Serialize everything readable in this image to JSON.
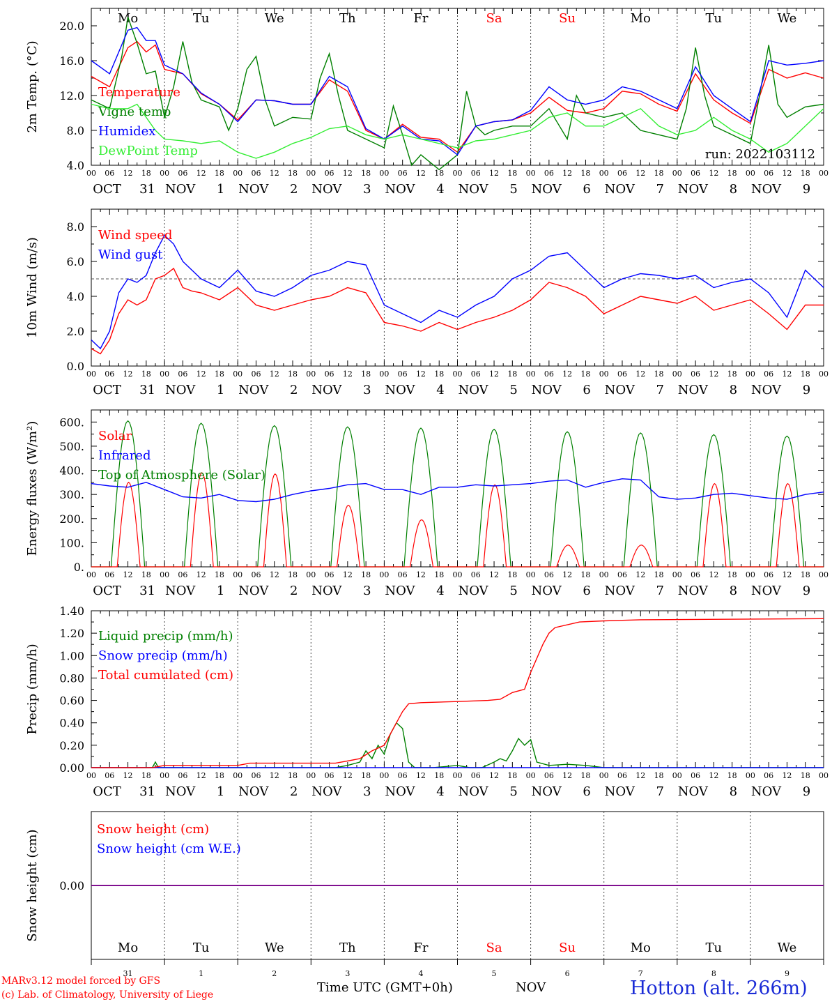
{
  "days": [
    {
      "weekday": "Mo",
      "month": "OCT",
      "day": "31",
      "weekend": false
    },
    {
      "weekday": "Tu",
      "month": "NOV",
      "day": "1",
      "weekend": false
    },
    {
      "weekday": "We",
      "month": "NOV",
      "day": "2",
      "weekend": false
    },
    {
      "weekday": "Th",
      "month": "NOV",
      "day": "3",
      "weekend": false
    },
    {
      "weekday": "Fr",
      "month": "NOV",
      "day": "4",
      "weekend": false
    },
    {
      "weekday": "Sa",
      "month": "NOV",
      "day": "5",
      "weekend": true
    },
    {
      "weekday": "Su",
      "month": "NOV",
      "day": "6",
      "weekend": true
    },
    {
      "weekday": "Mo",
      "month": "NOV",
      "day": "7",
      "weekend": false
    },
    {
      "weekday": "Tu",
      "month": "NOV",
      "day": "8",
      "weekend": false
    },
    {
      "weekday": "We",
      "month": "NOV",
      "day": "9",
      "weekend": false
    }
  ],
  "hour_ticks": [
    "00",
    "06",
    "12",
    "18"
  ],
  "colors": {
    "red": "#ff0000",
    "green": "#008000",
    "blue": "#0000ff",
    "lightgreen": "#33ee33",
    "purple": "#800080",
    "weekend": "#ff0000",
    "axis": "#000000"
  },
  "chart_data": [
    {
      "id": "temp",
      "type": "line",
      "ylabel": "2m Temp. (°C)",
      "ylim": [
        4.0,
        22.0
      ],
      "yticks": [
        4.0,
        8.0,
        12.0,
        16.0,
        20.0
      ],
      "ytick_labels": [
        "4.0",
        "8.0",
        "12.0",
        "16.0",
        "20.0"
      ],
      "show_weekdays": true,
      "annotation": "run: 2022103112",
      "x_unit": "hours since Oct 31 00 UTC",
      "series": [
        {
          "name": "Temperature",
          "color": "#ff0000",
          "x": [
            0,
            6,
            12,
            15,
            18,
            21,
            24,
            30,
            36,
            42,
            48,
            54,
            60,
            66,
            72,
            78,
            84,
            90,
            96,
            102,
            108,
            114,
            120,
            126,
            132,
            138,
            144,
            150,
            156,
            162,
            168,
            174,
            180,
            186,
            192,
            198,
            204,
            210,
            216,
            222,
            228,
            234,
            240
          ],
          "y": [
            14.2,
            13.0,
            17.5,
            18.2,
            17.0,
            17.8,
            15.0,
            14.5,
            12.2,
            11.0,
            9.2,
            11.5,
            11.4,
            11.0,
            11.0,
            13.8,
            12.5,
            8.0,
            7.0,
            8.7,
            7.2,
            7.0,
            5.5,
            8.5,
            9.0,
            9.2,
            10.0,
            11.8,
            10.3,
            10.0,
            10.5,
            12.5,
            12.2,
            11.0,
            10.2,
            14.5,
            11.5,
            10.0,
            8.8,
            15.0,
            14.0,
            14.6,
            14.0
          ]
        },
        {
          "name": "Vigne temp",
          "color": "#008000",
          "x": [
            0,
            6,
            10,
            12,
            15,
            18,
            21,
            24,
            27,
            30,
            33,
            36,
            42,
            45,
            48,
            51,
            54,
            57,
            60,
            66,
            72,
            75,
            78,
            81,
            84,
            90,
            96,
            99,
            102,
            105,
            108,
            114,
            120,
            123,
            126,
            129,
            132,
            138,
            144,
            150,
            156,
            159,
            162,
            168,
            174,
            180,
            186,
            192,
            195,
            198,
            201,
            204,
            210,
            216,
            219,
            222,
            225,
            228,
            234,
            240
          ],
          "y": [
            11.5,
            10.5,
            16.5,
            21.0,
            18.0,
            14.5,
            14.8,
            9.5,
            13.0,
            18.2,
            13.5,
            11.5,
            10.7,
            8.0,
            10.5,
            15.0,
            16.5,
            11.5,
            8.5,
            9.5,
            9.3,
            14.0,
            16.8,
            12.0,
            8.0,
            7.0,
            6.0,
            10.8,
            7.5,
            4.0,
            5.2,
            3.5,
            5.2,
            12.5,
            8.5,
            7.5,
            8.0,
            8.5,
            8.5,
            10.5,
            7.0,
            12.0,
            10.0,
            9.5,
            10.0,
            8.0,
            7.5,
            7.0,
            10.5,
            17.5,
            12.0,
            8.5,
            7.5,
            6.5,
            12.0,
            17.8,
            11.0,
            9.5,
            10.7,
            11.0
          ]
        },
        {
          "name": "Humidex",
          "color": "#0000ff",
          "x": [
            0,
            6,
            12,
            15,
            18,
            21,
            24,
            30,
            36,
            42,
            48,
            54,
            60,
            66,
            72,
            78,
            84,
            90,
            96,
            102,
            108,
            114,
            120,
            126,
            132,
            138,
            144,
            150,
            156,
            162,
            168,
            174,
            180,
            186,
            192,
            198,
            204,
            210,
            216,
            222,
            228,
            234,
            240
          ],
          "y": [
            16.0,
            14.5,
            19.5,
            19.8,
            18.3,
            18.3,
            15.5,
            14.5,
            12.3,
            11.0,
            9.0,
            11.5,
            11.4,
            11.0,
            11.0,
            14.2,
            13.0,
            8.2,
            7.0,
            8.5,
            7.0,
            6.8,
            5.2,
            8.5,
            9.0,
            9.2,
            10.3,
            13.0,
            11.5,
            11.0,
            11.5,
            13.0,
            12.5,
            11.5,
            10.5,
            15.3,
            12.0,
            10.5,
            9.0,
            16.0,
            15.5,
            15.7,
            16.0
          ]
        },
        {
          "name": "DewPoint Temp",
          "color": "#33ee33",
          "x": [
            0,
            6,
            12,
            15,
            18,
            21,
            24,
            30,
            36,
            42,
            48,
            54,
            60,
            66,
            72,
            78,
            84,
            90,
            96,
            102,
            108,
            114,
            120,
            126,
            132,
            138,
            144,
            150,
            156,
            162,
            168,
            174,
            180,
            186,
            192,
            198,
            204,
            210,
            216,
            222,
            228,
            234,
            240
          ],
          "y": [
            11.0,
            10.5,
            10.5,
            11.0,
            9.5,
            8.0,
            7.0,
            6.8,
            6.5,
            6.8,
            5.5,
            4.8,
            5.5,
            6.5,
            7.2,
            8.2,
            8.5,
            7.5,
            7.0,
            7.5,
            7.0,
            6.5,
            6.0,
            6.8,
            7.0,
            7.5,
            8.0,
            9.5,
            10.0,
            8.5,
            8.5,
            9.5,
            10.5,
            8.5,
            7.5,
            8.0,
            9.5,
            8.0,
            7.0,
            5.5,
            6.5,
            8.5,
            10.5
          ]
        }
      ],
      "legend": [
        "Temperature",
        "Vigne temp",
        "Humidex",
        "DewPoint Temp"
      ]
    },
    {
      "id": "wind",
      "type": "line",
      "ylabel": "10m Wind (m/s)",
      "ylim": [
        0.0,
        9.0
      ],
      "yticks": [
        0.0,
        2.0,
        4.0,
        6.0,
        8.0
      ],
      "ytick_labels": [
        "0.0",
        "2.0",
        "4.0",
        "6.0",
        "8.0"
      ],
      "reference_line": 5.0,
      "x_unit": "hours since Oct 31 00 UTC",
      "series": [
        {
          "name": "Wind speed",
          "color": "#ff0000",
          "x": [
            0,
            3,
            6,
            9,
            12,
            15,
            18,
            21,
            24,
            27,
            30,
            33,
            36,
            42,
            48,
            54,
            60,
            66,
            72,
            78,
            84,
            90,
            96,
            102,
            108,
            114,
            120,
            126,
            132,
            138,
            144,
            150,
            156,
            162,
            168,
            174,
            180,
            186,
            192,
            198,
            204,
            210,
            216,
            222,
            228,
            234,
            240
          ],
          "y": [
            1.0,
            0.7,
            1.5,
            3.0,
            3.8,
            3.5,
            3.8,
            5.0,
            5.2,
            5.6,
            4.5,
            4.3,
            4.2,
            3.8,
            4.5,
            3.5,
            3.2,
            3.5,
            3.8,
            4.0,
            4.5,
            4.2,
            2.5,
            2.3,
            2.0,
            2.5,
            2.1,
            2.5,
            2.8,
            3.2,
            3.8,
            4.8,
            4.5,
            4.0,
            3.0,
            3.5,
            4.0,
            3.8,
            3.6,
            4.0,
            3.2,
            3.5,
            3.8,
            3.0,
            2.1,
            3.5,
            3.5
          ]
        },
        {
          "name": "Wind gust",
          "color": "#0000ff",
          "x": [
            0,
            3,
            6,
            9,
            12,
            15,
            18,
            21,
            24,
            27,
            30,
            33,
            36,
            42,
            48,
            54,
            60,
            66,
            72,
            78,
            84,
            90,
            96,
            102,
            108,
            114,
            120,
            126,
            132,
            138,
            144,
            150,
            156,
            162,
            168,
            174,
            180,
            186,
            192,
            198,
            204,
            210,
            216,
            222,
            228,
            234,
            240
          ],
          "y": [
            1.5,
            1.0,
            2.0,
            4.2,
            5.0,
            4.8,
            5.2,
            6.5,
            7.5,
            7.0,
            6.0,
            5.5,
            5.0,
            4.5,
            5.5,
            4.3,
            4.0,
            4.5,
            5.2,
            5.5,
            6.0,
            5.8,
            3.5,
            3.0,
            2.5,
            3.2,
            2.8,
            3.5,
            4.0,
            5.0,
            5.5,
            6.3,
            6.5,
            5.5,
            4.5,
            5.0,
            5.3,
            5.2,
            5.0,
            5.2,
            4.5,
            4.8,
            5.0,
            4.2,
            2.8,
            5.5,
            4.5
          ]
        }
      ],
      "legend": [
        "Wind speed",
        "Wind gust"
      ]
    },
    {
      "id": "flux",
      "type": "line",
      "ylabel": "Energy fluxes (W/m²)",
      "ylim": [
        0,
        650
      ],
      "yticks": [
        0,
        100,
        200,
        300,
        400,
        500,
        600
      ],
      "ytick_labels": [
        "0.",
        "100.",
        "200.",
        "300.",
        "400.",
        "500.",
        "600."
      ],
      "x_unit": "hours since Oct 31 00 UTC",
      "solar_peaks": [
        350,
        390,
        385,
        255,
        195,
        340,
        90,
        90,
        345,
        345
      ],
      "toa_peaks": [
        605,
        595,
        585,
        580,
        575,
        570,
        560,
        555,
        548,
        542
      ],
      "series": [
        {
          "name": "Solar",
          "color": "#ff0000"
        },
        {
          "name": "Infrared",
          "color": "#0000ff",
          "x": [
            0,
            6,
            12,
            18,
            24,
            30,
            36,
            42,
            48,
            54,
            60,
            66,
            72,
            78,
            84,
            90,
            96,
            102,
            108,
            114,
            120,
            126,
            132,
            138,
            144,
            150,
            156,
            162,
            168,
            174,
            180,
            186,
            192,
            198,
            204,
            210,
            216,
            222,
            228,
            234,
            240
          ],
          "y": [
            345,
            335,
            330,
            350,
            320,
            290,
            285,
            300,
            275,
            270,
            280,
            300,
            315,
            325,
            340,
            345,
            320,
            320,
            300,
            330,
            330,
            340,
            335,
            340,
            345,
            355,
            360,
            330,
            350,
            365,
            360,
            290,
            280,
            285,
            300,
            305,
            295,
            285,
            280,
            300,
            310
          ]
        },
        {
          "name": "Top of Atmosphere (Solar)",
          "color": "#008000"
        }
      ],
      "legend": [
        "Solar",
        "Infrared",
        "Top of Atmosphere (Solar)"
      ]
    },
    {
      "id": "precip",
      "type": "line",
      "ylabel": "Precip (mm/h)",
      "ylim": [
        0.0,
        1.4
      ],
      "yticks": [
        0.0,
        0.2,
        0.4,
        0.6,
        0.8,
        1.0,
        1.2,
        1.4
      ],
      "ytick_labels": [
        "0.00",
        "0.20",
        "0.40",
        "0.60",
        "0.80",
        "1.00",
        "1.20",
        "1.40"
      ],
      "x_unit": "hours since Oct 31 00 UTC",
      "series": [
        {
          "name": "Liquid precip (mm/h)",
          "color": "#008000",
          "x": [
            0,
            20,
            21,
            22,
            80,
            84,
            88,
            90,
            92,
            94,
            96,
            98,
            100,
            102,
            104,
            106,
            108,
            112,
            120,
            124,
            128,
            132,
            134,
            136,
            138,
            140,
            142,
            144,
            146,
            150,
            156,
            162,
            168,
            240
          ],
          "y": [
            0,
            0,
            0.05,
            0,
            0,
            0.02,
            0.05,
            0.15,
            0.08,
            0.2,
            0.12,
            0.3,
            0.4,
            0.35,
            0.05,
            0,
            0,
            0,
            0.02,
            0,
            0,
            0.05,
            0.08,
            0.06,
            0.15,
            0.26,
            0.2,
            0.25,
            0.05,
            0.02,
            0.03,
            0.02,
            0,
            0
          ]
        },
        {
          "name": "Snow precip (mm/h)",
          "color": "#0000ff",
          "x": [
            0,
            240
          ],
          "y": [
            0,
            0
          ]
        },
        {
          "name": "Total cumulated (cm)",
          "color": "#ff0000",
          "x": [
            0,
            20,
            24,
            48,
            52,
            72,
            80,
            84,
            88,
            92,
            96,
            100,
            102,
            104,
            108,
            120,
            130,
            134,
            138,
            142,
            144,
            148,
            150,
            152,
            160,
            168,
            180,
            240
          ],
          "y": [
            0,
            0,
            0.02,
            0.02,
            0.04,
            0.04,
            0.04,
            0.06,
            0.08,
            0.15,
            0.2,
            0.4,
            0.5,
            0.57,
            0.58,
            0.59,
            0.6,
            0.61,
            0.67,
            0.7,
            0.85,
            1.1,
            1.2,
            1.25,
            1.3,
            1.31,
            1.32,
            1.33
          ]
        }
      ],
      "legend": [
        "Liquid precip (mm/h)",
        "Snow precip (mm/h)",
        "Total cumulated (cm)"
      ]
    },
    {
      "id": "snow",
      "type": "line",
      "ylabel": "Snow height (cm)",
      "ylim": [
        -1.0,
        1.0
      ],
      "yticks": [
        0.0
      ],
      "ytick_labels": [
        "0.00"
      ],
      "x_unit": "hours since Oct 31 00 UTC",
      "series": [
        {
          "name": "Snow height (cm)",
          "color": "#ff0000",
          "x": [
            0,
            240
          ],
          "y": [
            0,
            0
          ]
        },
        {
          "name": "Snow height (cm W.E.)",
          "color": "#0000ff",
          "x": [
            0,
            240
          ],
          "y": [
            0,
            0
          ]
        }
      ],
      "legend": [
        "Snow height (cm)",
        "Snow height (cm W.E.)"
      ]
    }
  ],
  "footer": {
    "model_line": "MARv3.12 model forced by GFS",
    "lab_line": "(c) Lab. of Climatology, University of Liege",
    "time_label": "Time UTC (GMT+0h)",
    "month_label": "NOV",
    "station": "Hotton (alt. 266m)"
  }
}
